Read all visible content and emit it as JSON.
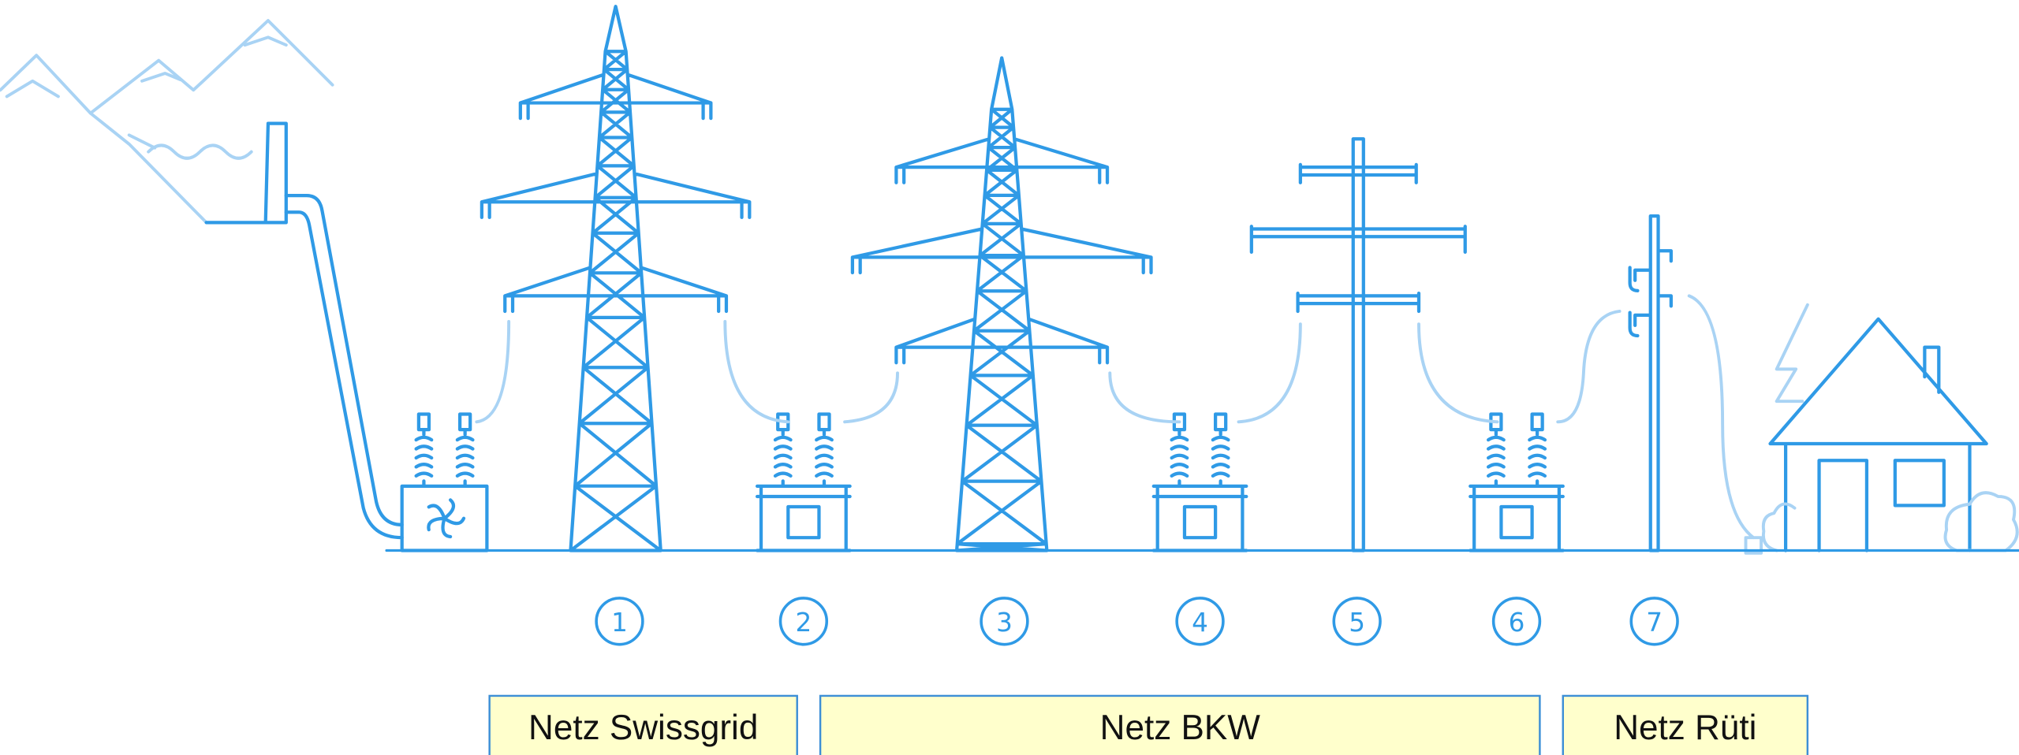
{
  "steps": [
    {
      "label": "1"
    },
    {
      "label": "2"
    },
    {
      "label": "3"
    },
    {
      "label": "4"
    },
    {
      "label": "5"
    },
    {
      "label": "6"
    },
    {
      "label": "7"
    }
  ],
  "networks": [
    {
      "label": "Netz Swissgrid"
    },
    {
      "label": "Netz BKW"
    },
    {
      "label": "Netz Rüti"
    }
  ]
}
